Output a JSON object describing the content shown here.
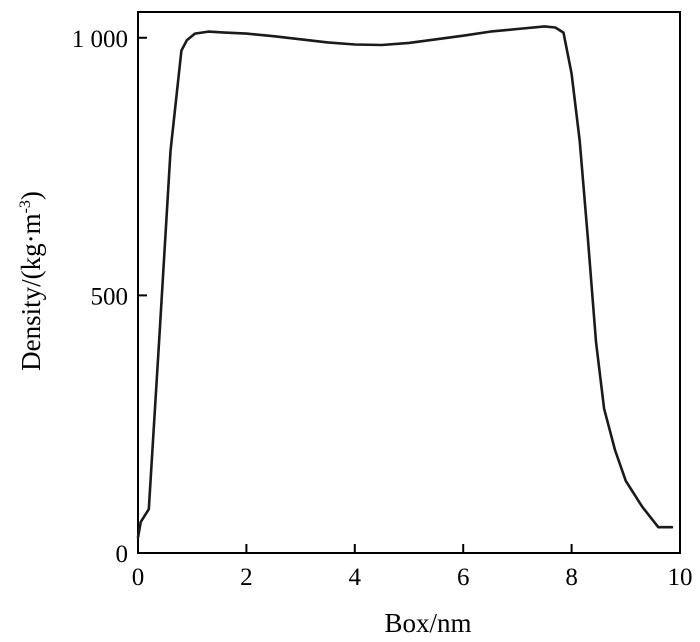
{
  "chart_data": {
    "type": "line",
    "title": "",
    "xlabel": "Box/nm",
    "ylabel_main": "Density/(kg·m",
    "ylabel_sup": "-3",
    "ylabel_end": ")",
    "xlim": [
      0,
      10
    ],
    "ylim": [
      0,
      1050
    ],
    "xticks": [
      0,
      2,
      4,
      6,
      8,
      10
    ],
    "xtick_labels": [
      "0",
      "2",
      "4",
      "6",
      "8",
      "10"
    ],
    "yticks": [
      0,
      500,
      1000
    ],
    "ytick_labels": [
      "0",
      "500",
      "1 000"
    ],
    "grid": false,
    "line_color": "#1a1a1a",
    "series": [
      {
        "x": [
          0.0,
          0.05,
          0.2,
          0.4,
          0.6,
          0.8,
          0.9,
          1.05,
          1.3,
          1.6,
          2.0,
          2.5,
          3.0,
          3.5,
          4.0,
          4.5,
          5.0,
          5.5,
          6.0,
          6.5,
          7.0,
          7.5,
          7.7,
          7.85,
          8.0,
          8.15,
          8.3,
          8.45,
          8.6,
          8.8,
          9.0,
          9.3,
          9.6,
          9.85
        ],
        "y": [
          30,
          60,
          85,
          430,
          780,
          975,
          995,
          1008,
          1012,
          1010,
          1008,
          1003,
          997,
          991,
          987,
          986,
          990,
          997,
          1004,
          1012,
          1017,
          1022,
          1020,
          1010,
          930,
          800,
          610,
          410,
          280,
          200,
          140,
          90,
          50,
          50
        ]
      }
    ]
  }
}
